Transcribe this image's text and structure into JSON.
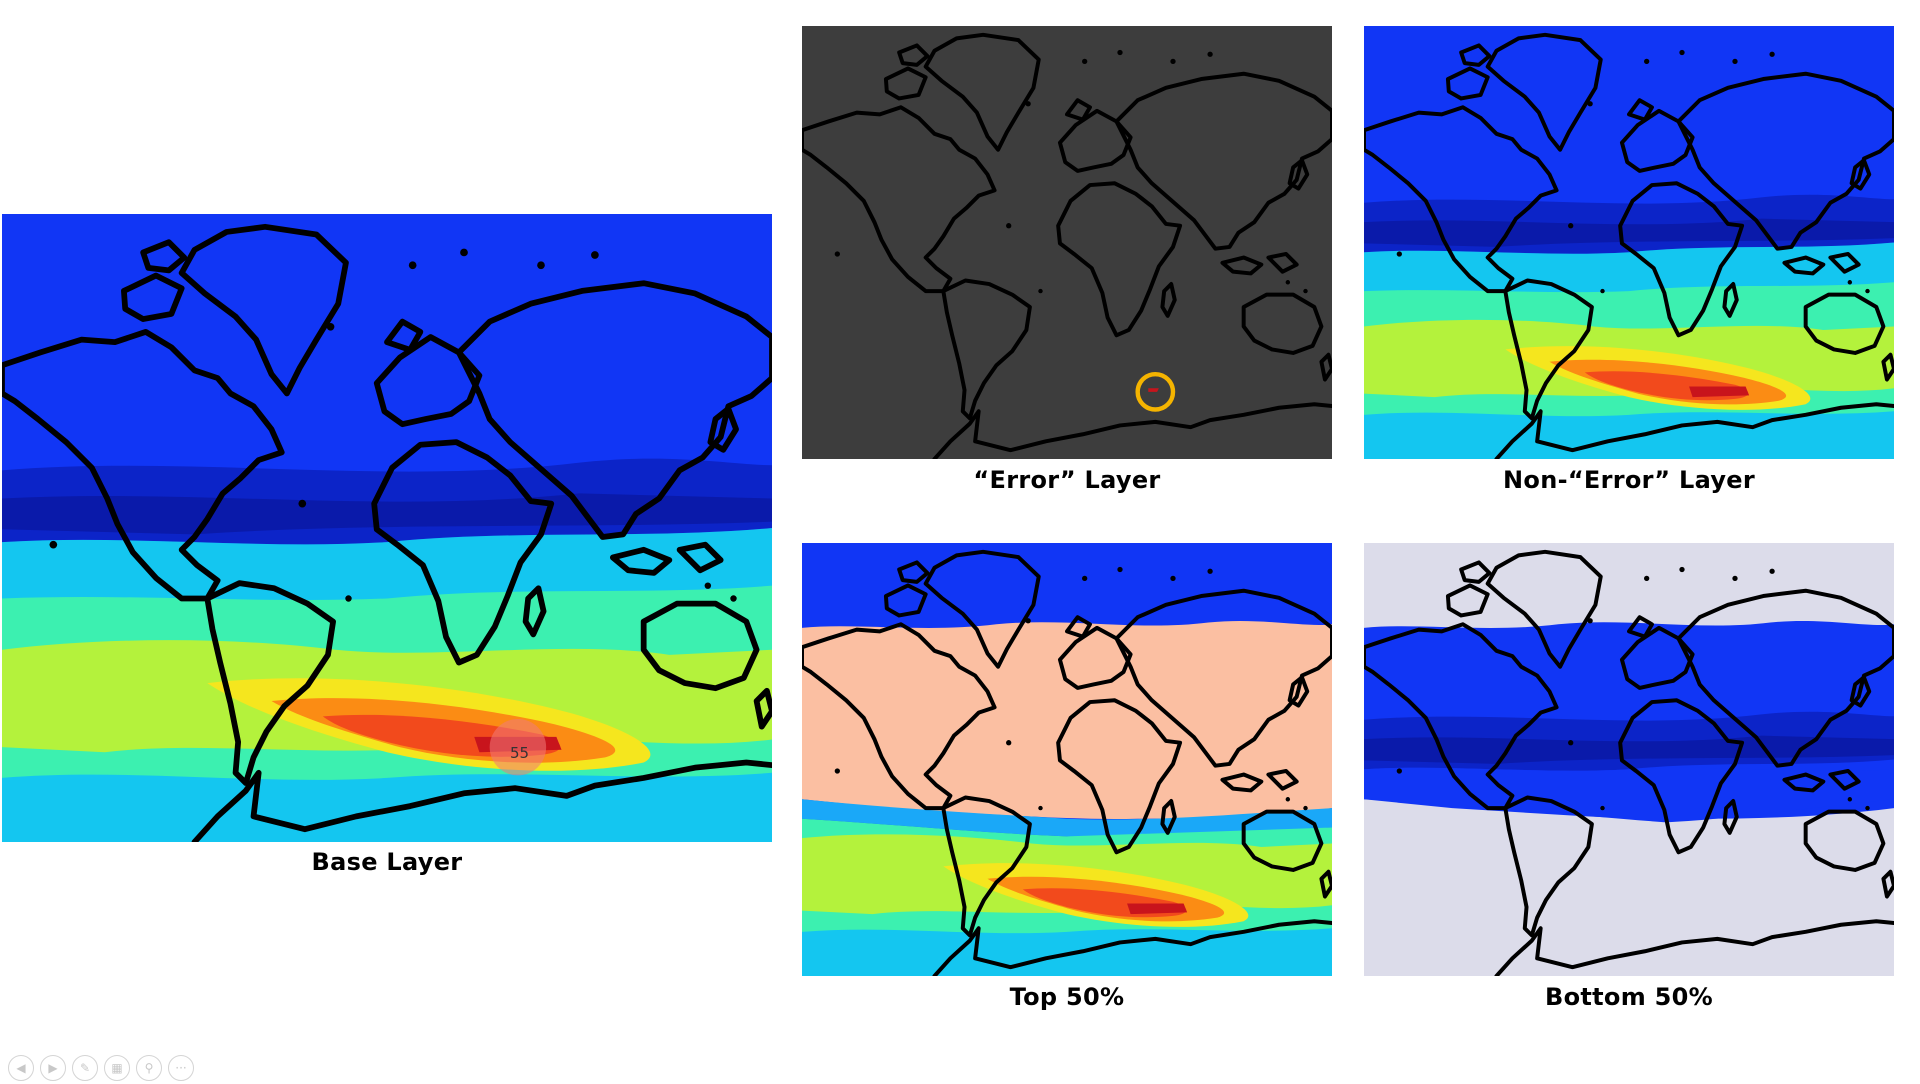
{
  "panels": {
    "base": {
      "caption": "Base Layer",
      "marker_value": "55"
    },
    "error": {
      "caption": "“Error” Layer"
    },
    "non_error": {
      "caption": "Non-“Error” Layer"
    },
    "top": {
      "caption": "Top 50%"
    },
    "bottom": {
      "caption": "Bottom 50%"
    }
  },
  "colors": {
    "deep_blue": "#1136f5",
    "mid_blue": "#0c24c8",
    "navy_band": "#0a1aaa",
    "light_blue": "#1aa8f8",
    "cyan": "#14c6f0",
    "aqua": "#3cf0b0",
    "green_yellow": "#b4f23c",
    "yellow": "#f5e61e",
    "orange": "#fb8c14",
    "red_orange": "#f24a1c",
    "dark_red": "#c8141c",
    "dark_gray": "#3d3d3d",
    "highlight_ring": "#f5b400",
    "peach": "#fbbfa2",
    "lavender": "#dcdcea"
  },
  "toolbar": {
    "prev_icon": "prev-icon",
    "next_icon": "next-icon",
    "pen_icon": "pen-icon",
    "slides_icon": "slides-icon",
    "zoom_icon": "zoom-icon",
    "more_icon": "more-icon",
    "more_label": "···"
  }
}
